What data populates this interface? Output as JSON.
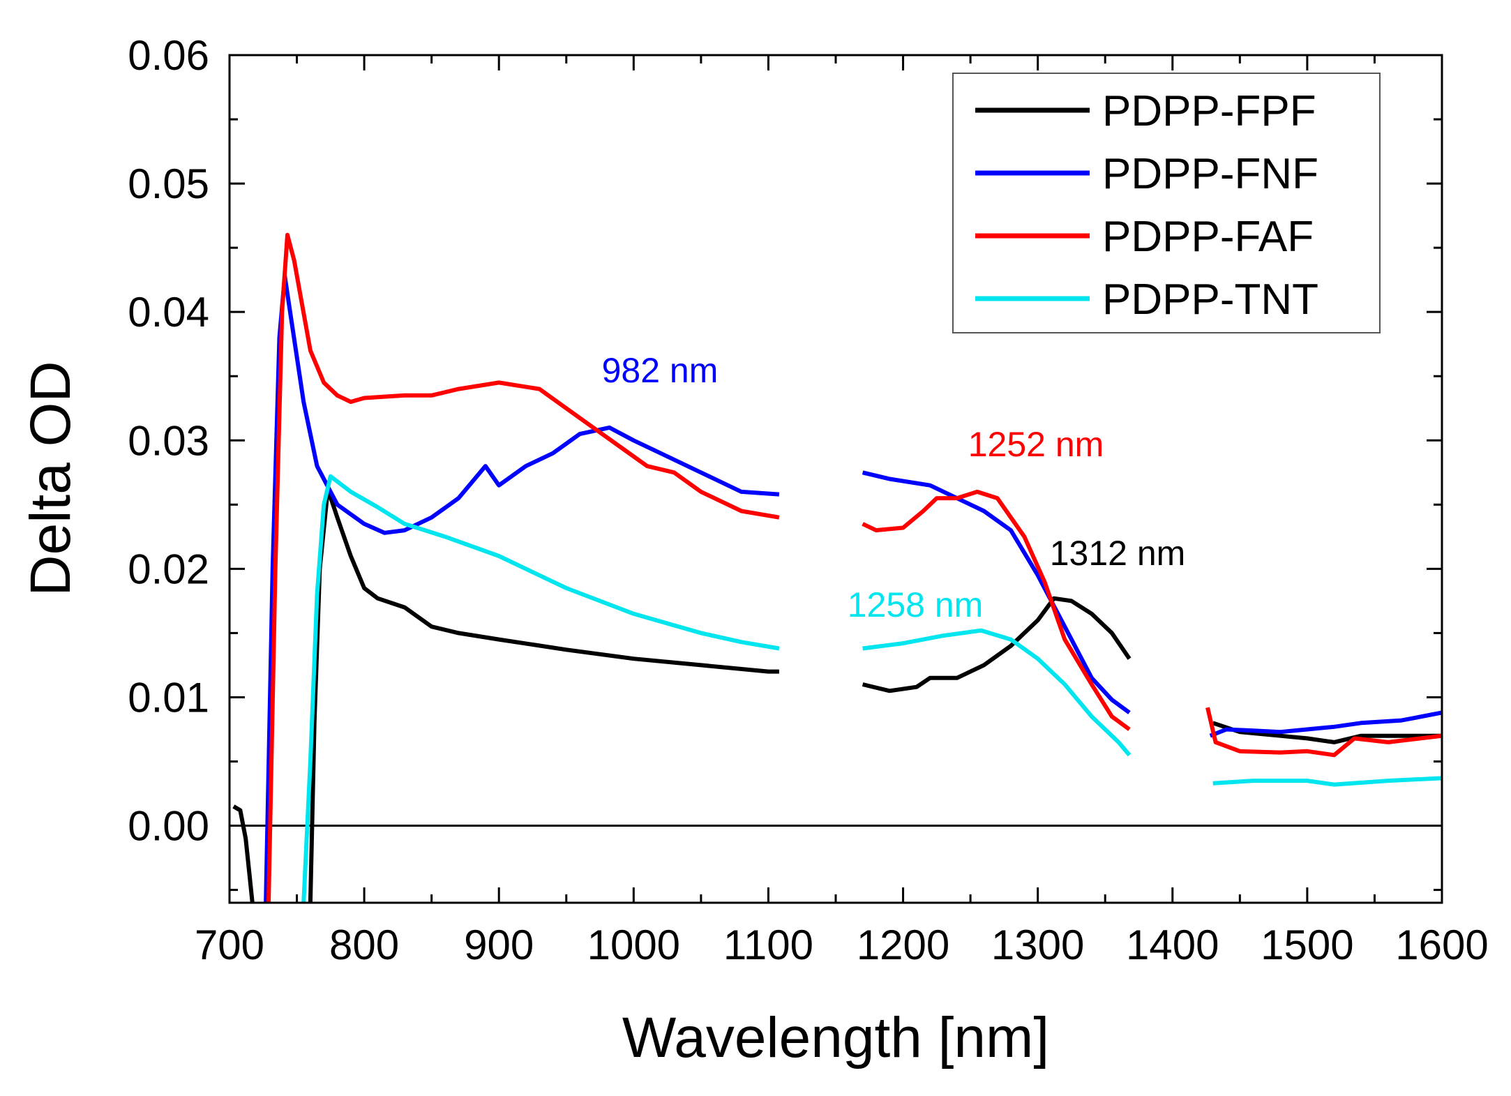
{
  "chart_data": {
    "type": "line",
    "title": "",
    "xlabel": "Wavelength [nm]",
    "ylabel": "Delta OD",
    "xlim": [
      700,
      1600
    ],
    "ylim": [
      -0.006,
      0.06
    ],
    "xticks": [
      "700",
      "800",
      "900",
      "1000",
      "1100",
      "1200",
      "1300",
      "1400",
      "1500",
      "1600"
    ],
    "yticks": [
      "0.00",
      "0.01",
      "0.02",
      "0.03",
      "0.04",
      "0.05",
      "0.06"
    ],
    "grid": false,
    "legend_position": "top-right",
    "zero_line": true,
    "series": [
      {
        "name": "PDPP-FPF",
        "color": "#000000",
        "segments": [
          [
            [
              703,
              0.0015
            ],
            [
              708,
              0.0012
            ],
            [
              712,
              -0.001
            ],
            [
              715,
              -0.004
            ],
            [
              717,
              -0.006
            ]
          ],
          [
            [
              760,
              -0.006
            ],
            [
              763,
              0.008
            ],
            [
              767,
              0.02
            ],
            [
              773,
              0.0262
            ],
            [
              780,
              0.024
            ],
            [
              790,
              0.021
            ],
            [
              800,
              0.0185
            ],
            [
              810,
              0.0177
            ],
            [
              830,
              0.017
            ],
            [
              850,
              0.0155
            ],
            [
              870,
              0.015
            ],
            [
              900,
              0.0145
            ],
            [
              950,
              0.0137
            ],
            [
              1000,
              0.013
            ],
            [
              1050,
              0.0125
            ],
            [
              1100,
              0.012
            ],
            [
              1108,
              0.012
            ]
          ],
          [
            [
              1170,
              0.011
            ],
            [
              1190,
              0.0105
            ],
            [
              1210,
              0.0108
            ],
            [
              1220,
              0.0115
            ],
            [
              1240,
              0.0115
            ],
            [
              1260,
              0.0125
            ],
            [
              1280,
              0.014
            ],
            [
              1300,
              0.016
            ],
            [
              1312,
              0.0177
            ],
            [
              1325,
              0.0175
            ],
            [
              1340,
              0.0165
            ],
            [
              1355,
              0.015
            ],
            [
              1368,
              0.013
            ]
          ],
          [
            [
              1430,
              0.008
            ],
            [
              1450,
              0.0073
            ],
            [
              1480,
              0.007
            ],
            [
              1500,
              0.0068
            ],
            [
              1520,
              0.0065
            ],
            [
              1540,
              0.007
            ],
            [
              1570,
              0.007
            ],
            [
              1600,
              0.007
            ]
          ]
        ]
      },
      {
        "name": "PDPP-FNF",
        "color": "#0000ff",
        "segments": [
          [
            [
              727,
              -0.006
            ],
            [
              732,
              0.02
            ],
            [
              737,
              0.038
            ],
            [
              741,
              0.0428
            ],
            [
              745,
              0.04
            ],
            [
              755,
              0.033
            ],
            [
              765,
              0.028
            ],
            [
              780,
              0.025
            ],
            [
              800,
              0.0235
            ],
            [
              815,
              0.0228
            ],
            [
              830,
              0.023
            ],
            [
              850,
              0.024
            ],
            [
              870,
              0.0255
            ],
            [
              890,
              0.028
            ],
            [
              900,
              0.0265
            ],
            [
              920,
              0.028
            ],
            [
              940,
              0.029
            ],
            [
              960,
              0.0305
            ],
            [
              982,
              0.031
            ],
            [
              1000,
              0.03
            ],
            [
              1020,
              0.029
            ],
            [
              1050,
              0.0275
            ],
            [
              1080,
              0.026
            ],
            [
              1108,
              0.0258
            ]
          ],
          [
            [
              1170,
              0.0275
            ],
            [
              1190,
              0.027
            ],
            [
              1220,
              0.0265
            ],
            [
              1240,
              0.0255
            ],
            [
              1260,
              0.0245
            ],
            [
              1280,
              0.023
            ],
            [
              1300,
              0.0195
            ],
            [
              1320,
              0.0155
            ],
            [
              1340,
              0.0115
            ],
            [
              1355,
              0.0098
            ],
            [
              1368,
              0.0088
            ]
          ],
          [
            [
              1428,
              0.007
            ],
            [
              1440,
              0.0075
            ],
            [
              1460,
              0.0074
            ],
            [
              1480,
              0.0073
            ],
            [
              1500,
              0.0075
            ],
            [
              1520,
              0.0077
            ],
            [
              1540,
              0.008
            ],
            [
              1570,
              0.0082
            ],
            [
              1600,
              0.0088
            ]
          ]
        ]
      },
      {
        "name": "PDPP-FAF",
        "color": "#ff0000",
        "segments": [
          [
            [
              729,
              -0.006
            ],
            [
              734,
              0.02
            ],
            [
              739,
              0.04
            ],
            [
              743,
              0.046
            ],
            [
              748,
              0.044
            ],
            [
              760,
              0.037
            ],
            [
              770,
              0.0345
            ],
            [
              780,
              0.0335
            ],
            [
              790,
              0.033
            ],
            [
              800,
              0.0333
            ],
            [
              830,
              0.0335
            ],
            [
              850,
              0.0335
            ],
            [
              870,
              0.034
            ],
            [
              900,
              0.0345
            ],
            [
              930,
              0.034
            ],
            [
              950,
              0.0325
            ],
            [
              970,
              0.031
            ],
            [
              990,
              0.0295
            ],
            [
              1010,
              0.028
            ],
            [
              1030,
              0.0275
            ],
            [
              1050,
              0.026
            ],
            [
              1080,
              0.0245
            ],
            [
              1108,
              0.024
            ]
          ],
          [
            [
              1170,
              0.0235
            ],
            [
              1180,
              0.023
            ],
            [
              1200,
              0.0232
            ],
            [
              1215,
              0.0245
            ],
            [
              1225,
              0.0255
            ],
            [
              1240,
              0.0255
            ],
            [
              1255,
              0.026
            ],
            [
              1270,
              0.0255
            ],
            [
              1290,
              0.0225
            ],
            [
              1305,
              0.019
            ],
            [
              1320,
              0.0145
            ],
            [
              1340,
              0.011
            ],
            [
              1355,
              0.0085
            ],
            [
              1368,
              0.0075
            ]
          ],
          [
            [
              1426,
              0.0092
            ],
            [
              1432,
              0.0065
            ],
            [
              1450,
              0.0058
            ],
            [
              1480,
              0.0057
            ],
            [
              1500,
              0.0058
            ],
            [
              1520,
              0.0055
            ],
            [
              1535,
              0.0068
            ],
            [
              1560,
              0.0065
            ],
            [
              1600,
              0.007
            ]
          ]
        ]
      },
      {
        "name": "PDPP-TNT",
        "color": "#00e5ee",
        "segments": [
          [
            [
              755,
              -0.006
            ],
            [
              760,
              0.005
            ],
            [
              765,
              0.018
            ],
            [
              770,
              0.025
            ],
            [
              775,
              0.0272
            ],
            [
              790,
              0.026
            ],
            [
              810,
              0.0248
            ],
            [
              830,
              0.0235
            ],
            [
              860,
              0.0225
            ],
            [
              900,
              0.021
            ],
            [
              950,
              0.0185
            ],
            [
              1000,
              0.0165
            ],
            [
              1050,
              0.015
            ],
            [
              1080,
              0.0143
            ],
            [
              1108,
              0.0138
            ]
          ],
          [
            [
              1170,
              0.0138
            ],
            [
              1200,
              0.0142
            ],
            [
              1230,
              0.0148
            ],
            [
              1258,
              0.0152
            ],
            [
              1280,
              0.0145
            ],
            [
              1300,
              0.013
            ],
            [
              1320,
              0.011
            ],
            [
              1340,
              0.0085
            ],
            [
              1360,
              0.0065
            ],
            [
              1368,
              0.0055
            ]
          ],
          [
            [
              1430,
              0.0033
            ],
            [
              1460,
              0.0035
            ],
            [
              1500,
              0.0035
            ],
            [
              1520,
              0.0032
            ],
            [
              1560,
              0.0035
            ],
            [
              1600,
              0.0037
            ]
          ]
        ]
      }
    ],
    "annotations": [
      {
        "text": "982 nm",
        "color": "#0000ff"
      },
      {
        "text": "1252 nm",
        "color": "#ff0000"
      },
      {
        "text": "1312 nm",
        "color": "#000000"
      },
      {
        "text": "1258 nm",
        "color": "#00e5ee"
      }
    ]
  }
}
